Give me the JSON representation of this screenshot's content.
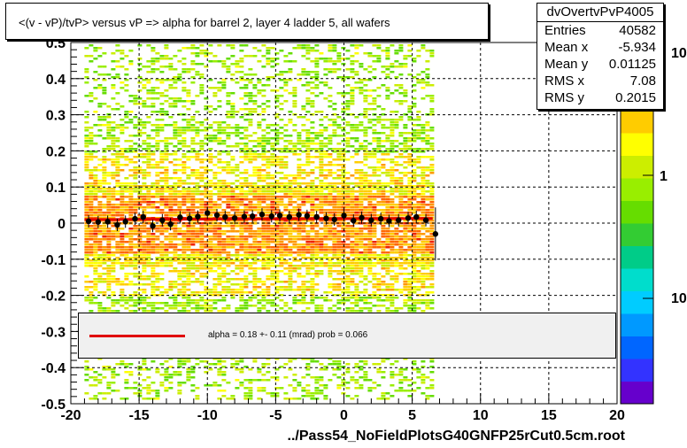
{
  "title": "<(v - vP)/tvP> versus   vP => alpha for barrel 2, layer 4 ladder 5, all wafers",
  "stats": {
    "name": "dvOvertvPvP4005",
    "rows": [
      {
        "key": "Entries",
        "value": "40582"
      },
      {
        "key": "Mean x",
        "value": "-5.934"
      },
      {
        "key": "Mean y",
        "value": "0.01125"
      },
      {
        "key": "RMS x",
        "value": "7.08"
      },
      {
        "key": "RMS y",
        "value": "0.2015"
      }
    ]
  },
  "fit": {
    "label": "alpha =    0.18 +-  0.11 (mrad) prob = 0.066",
    "color": "#e00000"
  },
  "footer": "../Pass54_NoFieldPlotsG40GNFP25rCut0.5cm.root",
  "colorbar": {
    "labels": [
      "10",
      "1",
      "10"
    ],
    "colors": [
      "#6600cc",
      "#3333ff",
      "#0066ff",
      "#0099ff",
      "#00ccff",
      "#00ddcc",
      "#00cc88",
      "#33cc33",
      "#66dd00",
      "#99ee00",
      "#ccee00",
      "#ffff00",
      "#ffcc00",
      "#ff9900",
      "#ff6600",
      "#ee2200"
    ]
  },
  "chart_data": {
    "type": "heatmap",
    "xlim": [
      -20,
      20
    ],
    "ylim": [
      -0.5,
      0.5
    ],
    "x_ticks": [
      -20,
      -15,
      -10,
      -5,
      0,
      5,
      10,
      15,
      20
    ],
    "y_ticks": [
      -0.5,
      -0.4,
      -0.3,
      -0.2,
      -0.1,
      0,
      0.1,
      0.2,
      0.3,
      0.4,
      0.5
    ],
    "x_tick_labels": [
      "-20",
      "-15",
      "-10",
      "-5",
      "0",
      "5",
      "10",
      "15",
      "20"
    ],
    "y_tick_labels": [
      "-0.5",
      "-0.4",
      "-0.3",
      "-0.2",
      "-0.1",
      "0",
      "0.1",
      "0.2",
      "0.3",
      "0.4",
      "0.5"
    ],
    "grid": true,
    "fit_line": {
      "x": [
        -19,
        6.5
      ],
      "y": [
        0.01,
        0.013
      ]
    },
    "profile_points": [
      {
        "x": -18.7,
        "y": 0.005
      },
      {
        "x": -18.0,
        "y": 0.003
      },
      {
        "x": -17.3,
        "y": 0.004
      },
      {
        "x": -16.6,
        "y": -0.005
      },
      {
        "x": -16.0,
        "y": 0.004
      },
      {
        "x": -15.3,
        "y": 0.012
      },
      {
        "x": -14.7,
        "y": 0.017
      },
      {
        "x": -14.0,
        "y": -0.008
      },
      {
        "x": -13.3,
        "y": 0.008
      },
      {
        "x": -12.7,
        "y": -0.003
      },
      {
        "x": -12.0,
        "y": 0.016
      },
      {
        "x": -11.3,
        "y": 0.013
      },
      {
        "x": -10.7,
        "y": 0.018
      },
      {
        "x": -10.0,
        "y": 0.028
      },
      {
        "x": -9.3,
        "y": 0.022
      },
      {
        "x": -8.7,
        "y": 0.017
      },
      {
        "x": -8.0,
        "y": 0.014
      },
      {
        "x": -7.3,
        "y": 0.018
      },
      {
        "x": -6.7,
        "y": 0.019
      },
      {
        "x": -6.0,
        "y": 0.024
      },
      {
        "x": -5.3,
        "y": 0.019
      },
      {
        "x": -4.7,
        "y": 0.021
      },
      {
        "x": -4.0,
        "y": 0.017
      },
      {
        "x": -3.3,
        "y": 0.023
      },
      {
        "x": -2.7,
        "y": 0.02
      },
      {
        "x": -2.0,
        "y": 0.017
      },
      {
        "x": -1.3,
        "y": 0.013
      },
      {
        "x": -0.7,
        "y": 0.01
      },
      {
        "x": 0.0,
        "y": 0.021
      },
      {
        "x": 0.7,
        "y": 0.007
      },
      {
        "x": 1.3,
        "y": 0.015
      },
      {
        "x": 2.0,
        "y": 0.008
      },
      {
        "x": 2.7,
        "y": 0.012
      },
      {
        "x": 3.3,
        "y": 0.006
      },
      {
        "x": 4.0,
        "y": 0.008
      },
      {
        "x": 4.7,
        "y": 0.014
      },
      {
        "x": 5.3,
        "y": 0.017
      },
      {
        "x": 6.0,
        "y": 0.008
      },
      {
        "x": 6.7,
        "y": -0.03
      }
    ]
  }
}
